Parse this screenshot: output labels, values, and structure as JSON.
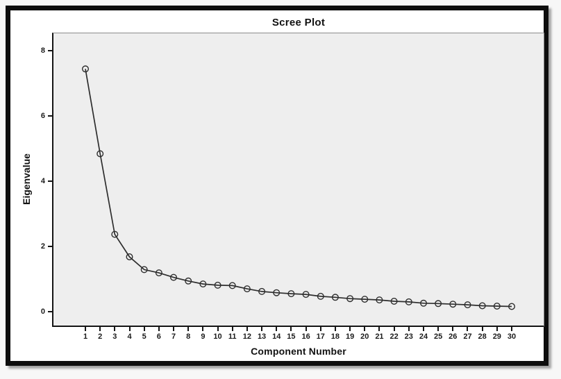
{
  "figure": {
    "frame_color": "#0d0d0d",
    "frame_background": "#ffffff",
    "shadow_color": "#5a5a5a"
  },
  "chart_data": {
    "type": "line",
    "title": "Scree Plot",
    "xlabel": "Component Number",
    "ylabel": "Eigenvalue",
    "x": [
      1,
      2,
      3,
      4,
      5,
      6,
      7,
      8,
      9,
      10,
      11,
      12,
      13,
      14,
      15,
      16,
      17,
      18,
      19,
      20,
      21,
      22,
      23,
      24,
      25,
      26,
      27,
      28,
      29,
      30
    ],
    "values": [
      7.44,
      4.84,
      2.37,
      1.68,
      1.29,
      1.19,
      1.05,
      0.94,
      0.85,
      0.81,
      0.8,
      0.7,
      0.62,
      0.58,
      0.55,
      0.53,
      0.47,
      0.44,
      0.4,
      0.38,
      0.36,
      0.32,
      0.3,
      0.26,
      0.25,
      0.23,
      0.21,
      0.18,
      0.17,
      0.16
    ],
    "yticks": [
      0,
      2,
      4,
      6,
      8
    ],
    "ylim": [
      -0.43,
      8.53
    ],
    "grid": false,
    "legend": "none",
    "marker": "open-circle",
    "plot_background": "#eeeeee",
    "line_color": "#2d2d2d",
    "axis_color": "#141414"
  }
}
